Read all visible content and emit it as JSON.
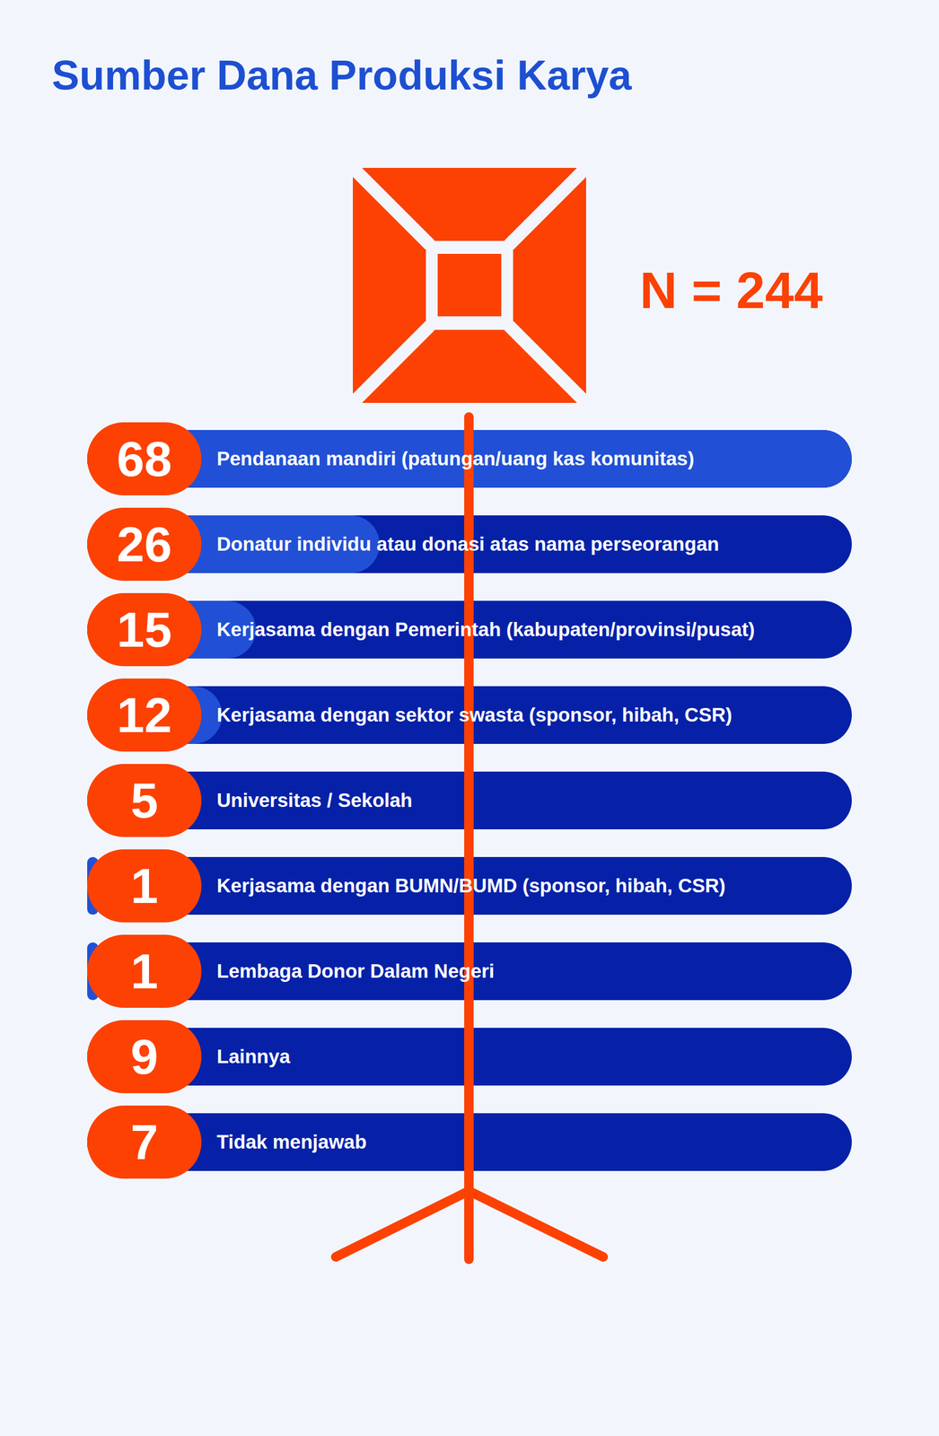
{
  "chart_data": {
    "type": "bar",
    "orientation": "horizontal",
    "title": "Sumber Dana Produksi Karya",
    "subtitle": "N = 244",
    "categories": [
      "Pendanaan mandiri (patungan/uang kas komunitas)",
      "Donatur individu atau donasi atas nama perseorangan",
      "Kerjasama dengan Pemerintah (kabupaten/provinsi/pusat)",
      "Kerjasama dengan sektor swasta (sponsor, hibah, CSR)",
      "Universitas / Sekolah",
      "Kerjasama dengan BUMN/BUMD (sponsor, hibah, CSR)",
      "Lembaga Donor Dalam Negeri",
      "Lainnya",
      "Tidak menjawab"
    ],
    "values": [
      68,
      26,
      15,
      12,
      5,
      1,
      1,
      9,
      7
    ],
    "xlim": [
      0,
      68
    ],
    "color": "#2150d6",
    "data_labels": true,
    "tick_labels": false,
    "grid": false
  }
}
